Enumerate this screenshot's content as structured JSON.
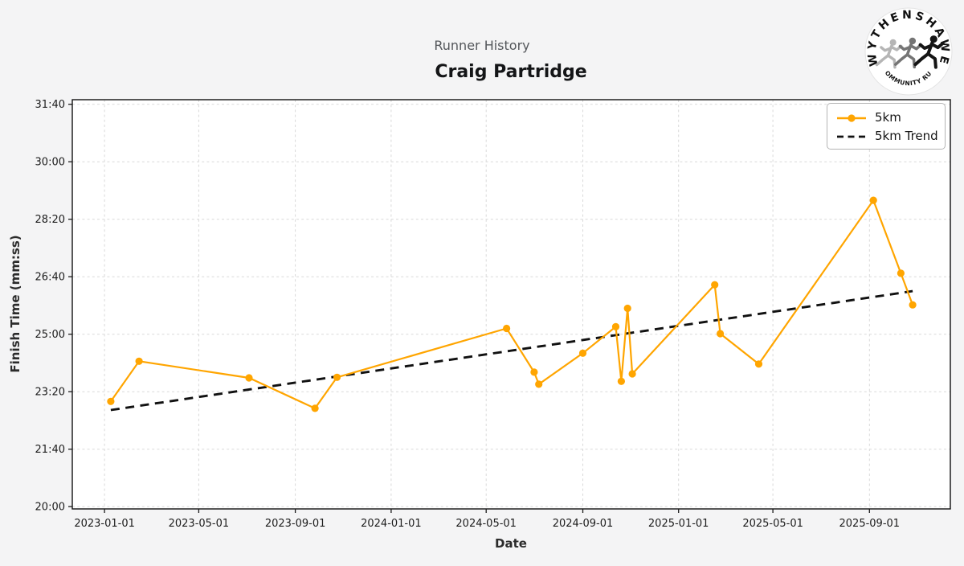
{
  "header": {
    "subtitle": "Runner History",
    "title": "Craig Partridge"
  },
  "logo": {
    "top_text": "WYTHENSHAWE",
    "bottom_text": "COMMUNITY RUN",
    "runner_colors": [
      "#b5b5b5",
      "#757575",
      "#151515"
    ]
  },
  "legend": {
    "items": [
      {
        "label": "5km",
        "type": "line-marker",
        "color": "#FFA500"
      },
      {
        "label": "5km Trend",
        "type": "dashed-line",
        "color": "#111111"
      }
    ]
  },
  "chart_data": {
    "type": "line",
    "title": "Runner History",
    "subtitle": "Craig Partridge",
    "xlabel": "Date",
    "ylabel": "Finish Time (mm:ss)",
    "grid": true,
    "legend_position": "upper right",
    "x_ticks": [
      "2023-01-01",
      "2023-05-01",
      "2023-09-01",
      "2024-01-01",
      "2024-05-01",
      "2024-09-01",
      "2025-01-01",
      "2025-05-01",
      "2025-09-01"
    ],
    "y_ticks": [
      "20:00",
      "21:40",
      "23:20",
      "25:00",
      "26:40",
      "28:20",
      "30:00",
      "31:40"
    ],
    "x_domain": [
      "2022-11-21",
      "2025-12-13"
    ],
    "y_domain_seconds": [
      1196,
      1908
    ],
    "series": [
      {
        "name": "5km",
        "color": "#FFA500",
        "marker": "circle",
        "points": [
          {
            "date": "2023-01-09",
            "time": "23:03"
          },
          {
            "date": "2023-02-14",
            "time": "24:13"
          },
          {
            "date": "2023-07-04",
            "time": "23:44"
          },
          {
            "date": "2023-09-26",
            "time": "22:51"
          },
          {
            "date": "2023-10-24",
            "time": "23:45"
          },
          {
            "date": "2024-05-27",
            "time": "25:10"
          },
          {
            "date": "2024-07-01",
            "time": "23:54"
          },
          {
            "date": "2024-07-07",
            "time": "23:33"
          },
          {
            "date": "2024-09-01",
            "time": "24:27"
          },
          {
            "date": "2024-10-13",
            "time": "25:13"
          },
          {
            "date": "2024-10-20",
            "time": "23:38"
          },
          {
            "date": "2024-10-28",
            "time": "25:45"
          },
          {
            "date": "2024-11-03",
            "time": "23:51"
          },
          {
            "date": "2025-02-16",
            "time": "26:26"
          },
          {
            "date": "2025-02-23",
            "time": "25:01"
          },
          {
            "date": "2025-04-13",
            "time": "24:08"
          },
          {
            "date": "2025-09-06",
            "time": "28:53"
          },
          {
            "date": "2025-10-11",
            "time": "26:46"
          },
          {
            "date": "2025-10-26",
            "time": "25:51"
          }
        ]
      }
    ],
    "trend": {
      "name": "5km Trend",
      "color": "#111111",
      "style": "dashed",
      "start": {
        "date": "2023-01-09",
        "time": "22:48"
      },
      "end": {
        "date": "2025-10-26",
        "time": "26:15"
      }
    }
  }
}
